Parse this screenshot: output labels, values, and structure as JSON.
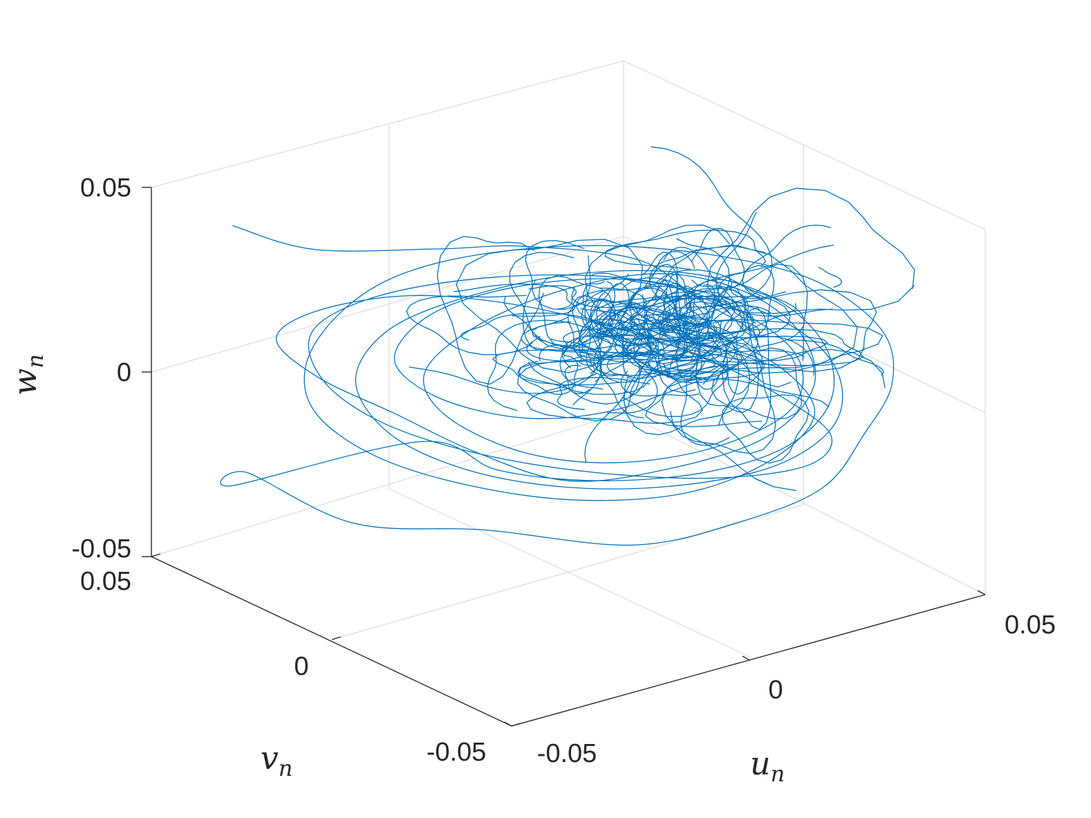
{
  "chart_data": {
    "type": "line",
    "projection": "3d",
    "xlabel": "u",
    "xlabel_sub": "n",
    "ylabel": "v",
    "ylabel_sub": "n",
    "zlabel": "w",
    "zlabel_sub": "n",
    "xlim": [
      -0.05,
      0.05
    ],
    "ylim": [
      -0.05,
      0.05
    ],
    "zlim": [
      -0.05,
      0.05
    ],
    "x_ticks": [
      {
        "value": -0.05,
        "label": "-0.05"
      },
      {
        "value": 0,
        "label": "0"
      },
      {
        "value": 0.05,
        "label": "0.05"
      }
    ],
    "y_ticks": [
      {
        "value": -0.05,
        "label": "-0.05"
      },
      {
        "value": 0,
        "label": "0"
      },
      {
        "value": 0.05,
        "label": "0.05"
      }
    ],
    "z_ticks": [
      {
        "value": -0.05,
        "label": "-0.05"
      },
      {
        "value": 0,
        "label": "0"
      },
      {
        "value": 0.05,
        "label": "0.05"
      }
    ],
    "grid": true,
    "series": [
      {
        "color": "#0072BD",
        "description_of_shape": "chaotic tangled trajectory concentrated near u≈0.02, v≈0.0, w≈0.005 with spread roughly ±0.04",
        "points": [
          [
            -0.048,
            0.03,
            0.048
          ],
          [
            -0.04,
            0.018,
            0.044
          ],
          [
            -0.02,
            0.01,
            0.04
          ],
          [
            0.0,
            0.012,
            0.032
          ],
          [
            0.015,
            0.0,
            0.028
          ],
          [
            0.02,
            -0.01,
            0.02
          ],
          [
            0.028,
            -0.015,
            0.01
          ],
          [
            0.03,
            -0.01,
            0.0
          ],
          [
            0.025,
            0.0,
            -0.01
          ],
          [
            0.015,
            0.01,
            -0.018
          ],
          [
            0.005,
            0.02,
            -0.02
          ],
          [
            -0.005,
            0.03,
            -0.015
          ],
          [
            -0.01,
            0.035,
            -0.005
          ],
          [
            -0.005,
            0.03,
            0.008
          ],
          [
            0.008,
            0.02,
            0.015
          ],
          [
            0.02,
            0.005,
            0.018
          ],
          [
            0.03,
            -0.008,
            0.012
          ],
          [
            0.035,
            -0.018,
            0.002
          ],
          [
            0.032,
            -0.02,
            -0.01
          ],
          [
            0.022,
            -0.012,
            -0.02
          ],
          [
            0.01,
            0.0,
            -0.025
          ],
          [
            -0.002,
            0.01,
            -0.022
          ],
          [
            -0.012,
            0.018,
            -0.012
          ],
          [
            -0.015,
            0.02,
            0.0
          ],
          [
            -0.008,
            0.015,
            0.012
          ],
          [
            0.005,
            0.008,
            0.02
          ],
          [
            0.018,
            -0.002,
            0.024
          ],
          [
            0.028,
            -0.012,
            0.02
          ],
          [
            0.034,
            -0.02,
            0.01
          ],
          [
            0.033,
            -0.025,
            -0.002
          ],
          [
            0.025,
            -0.022,
            -0.014
          ],
          [
            0.012,
            -0.012,
            -0.022
          ],
          [
            0.0,
            0.0,
            -0.026
          ],
          [
            -0.01,
            0.012,
            -0.02
          ],
          [
            -0.02,
            0.022,
            -0.01
          ],
          [
            -0.03,
            0.03,
            0.0
          ],
          [
            -0.035,
            0.035,
            0.01
          ],
          [
            -0.03,
            0.03,
            0.018
          ],
          [
            -0.018,
            0.02,
            0.022
          ],
          [
            -0.005,
            0.008,
            0.02
          ],
          [
            0.008,
            -0.005,
            0.014
          ],
          [
            0.02,
            -0.015,
            0.005
          ],
          [
            0.03,
            -0.022,
            -0.006
          ],
          [
            0.036,
            -0.026,
            -0.016
          ],
          [
            0.034,
            -0.022,
            -0.025
          ],
          [
            0.024,
            -0.01,
            -0.03
          ],
          [
            0.01,
            0.005,
            -0.03
          ],
          [
            -0.005,
            0.018,
            -0.025
          ],
          [
            -0.018,
            0.028,
            -0.016
          ],
          [
            -0.026,
            0.034,
            -0.004
          ],
          [
            -0.028,
            0.034,
            0.01
          ],
          [
            -0.02,
            0.026,
            0.02
          ],
          [
            -0.006,
            0.012,
            0.026
          ],
          [
            0.01,
            -0.002,
            0.026
          ],
          [
            0.024,
            -0.014,
            0.02
          ],
          [
            0.034,
            -0.022,
            0.01
          ],
          [
            0.038,
            -0.026,
            -0.002
          ],
          [
            0.036,
            -0.026,
            -0.014
          ],
          [
            0.028,
            -0.02,
            -0.024
          ],
          [
            0.016,
            -0.008,
            -0.03
          ],
          [
            0.004,
            0.006,
            -0.032
          ],
          [
            -0.008,
            0.018,
            -0.028
          ],
          [
            -0.018,
            0.026,
            -0.018
          ],
          [
            -0.022,
            0.03,
            -0.004
          ],
          [
            -0.018,
            0.026,
            0.01
          ],
          [
            -0.008,
            0.016,
            0.02
          ],
          [
            0.006,
            0.004,
            0.026
          ],
          [
            0.02,
            -0.008,
            0.026
          ],
          [
            0.03,
            -0.018,
            0.02
          ],
          [
            0.036,
            -0.024,
            0.008
          ],
          [
            0.036,
            -0.026,
            -0.006
          ],
          [
            0.03,
            -0.022,
            -0.018
          ],
          [
            0.02,
            -0.012,
            -0.026
          ],
          [
            0.008,
            0.002,
            -0.03
          ],
          [
            -0.004,
            0.014,
            -0.028
          ],
          [
            -0.014,
            0.022,
            -0.02
          ],
          [
            -0.04,
            0.04,
            -0.03
          ],
          [
            -0.045,
            0.03,
            -0.02
          ],
          [
            -0.03,
            0.02,
            -0.035
          ],
          [
            -0.01,
            0.01,
            -0.04
          ],
          [
            0.01,
            -0.005,
            -0.045
          ],
          [
            0.025,
            -0.015,
            -0.04
          ],
          [
            0.035,
            -0.025,
            -0.03
          ],
          [
            0.04,
            -0.03,
            -0.015
          ],
          [
            0.042,
            -0.035,
            0.0
          ],
          [
            0.04,
            -0.035,
            0.015
          ],
          [
            0.032,
            -0.028,
            0.028
          ],
          [
            0.02,
            -0.018,
            0.035
          ],
          [
            0.005,
            -0.005,
            0.038
          ],
          [
            -0.01,
            0.008,
            0.036
          ],
          [
            -0.022,
            0.018,
            0.03
          ],
          [
            -0.03,
            0.024,
            0.02
          ],
          [
            -0.034,
            0.028,
            0.006
          ],
          [
            -0.032,
            0.028,
            -0.008
          ],
          [
            -0.024,
            0.022,
            -0.02
          ],
          [
            -0.012,
            0.012,
            -0.028
          ],
          [
            0.002,
            0.0,
            -0.032
          ],
          [
            0.016,
            -0.012,
            -0.03
          ],
          [
            0.028,
            -0.02,
            -0.022
          ],
          [
            0.034,
            -0.024,
            -0.01
          ],
          [
            0.03,
            -0.02,
            0.002
          ],
          [
            0.022,
            -0.012,
            0.01
          ],
          [
            0.012,
            -0.002,
            0.014
          ],
          [
            0.018,
            -0.006,
            0.008
          ],
          [
            0.026,
            -0.014,
            0.004
          ],
          [
            0.022,
            -0.01,
            -0.002
          ],
          [
            0.014,
            -0.004,
            0.002
          ],
          [
            0.02,
            -0.008,
            0.01
          ]
        ]
      }
    ]
  }
}
